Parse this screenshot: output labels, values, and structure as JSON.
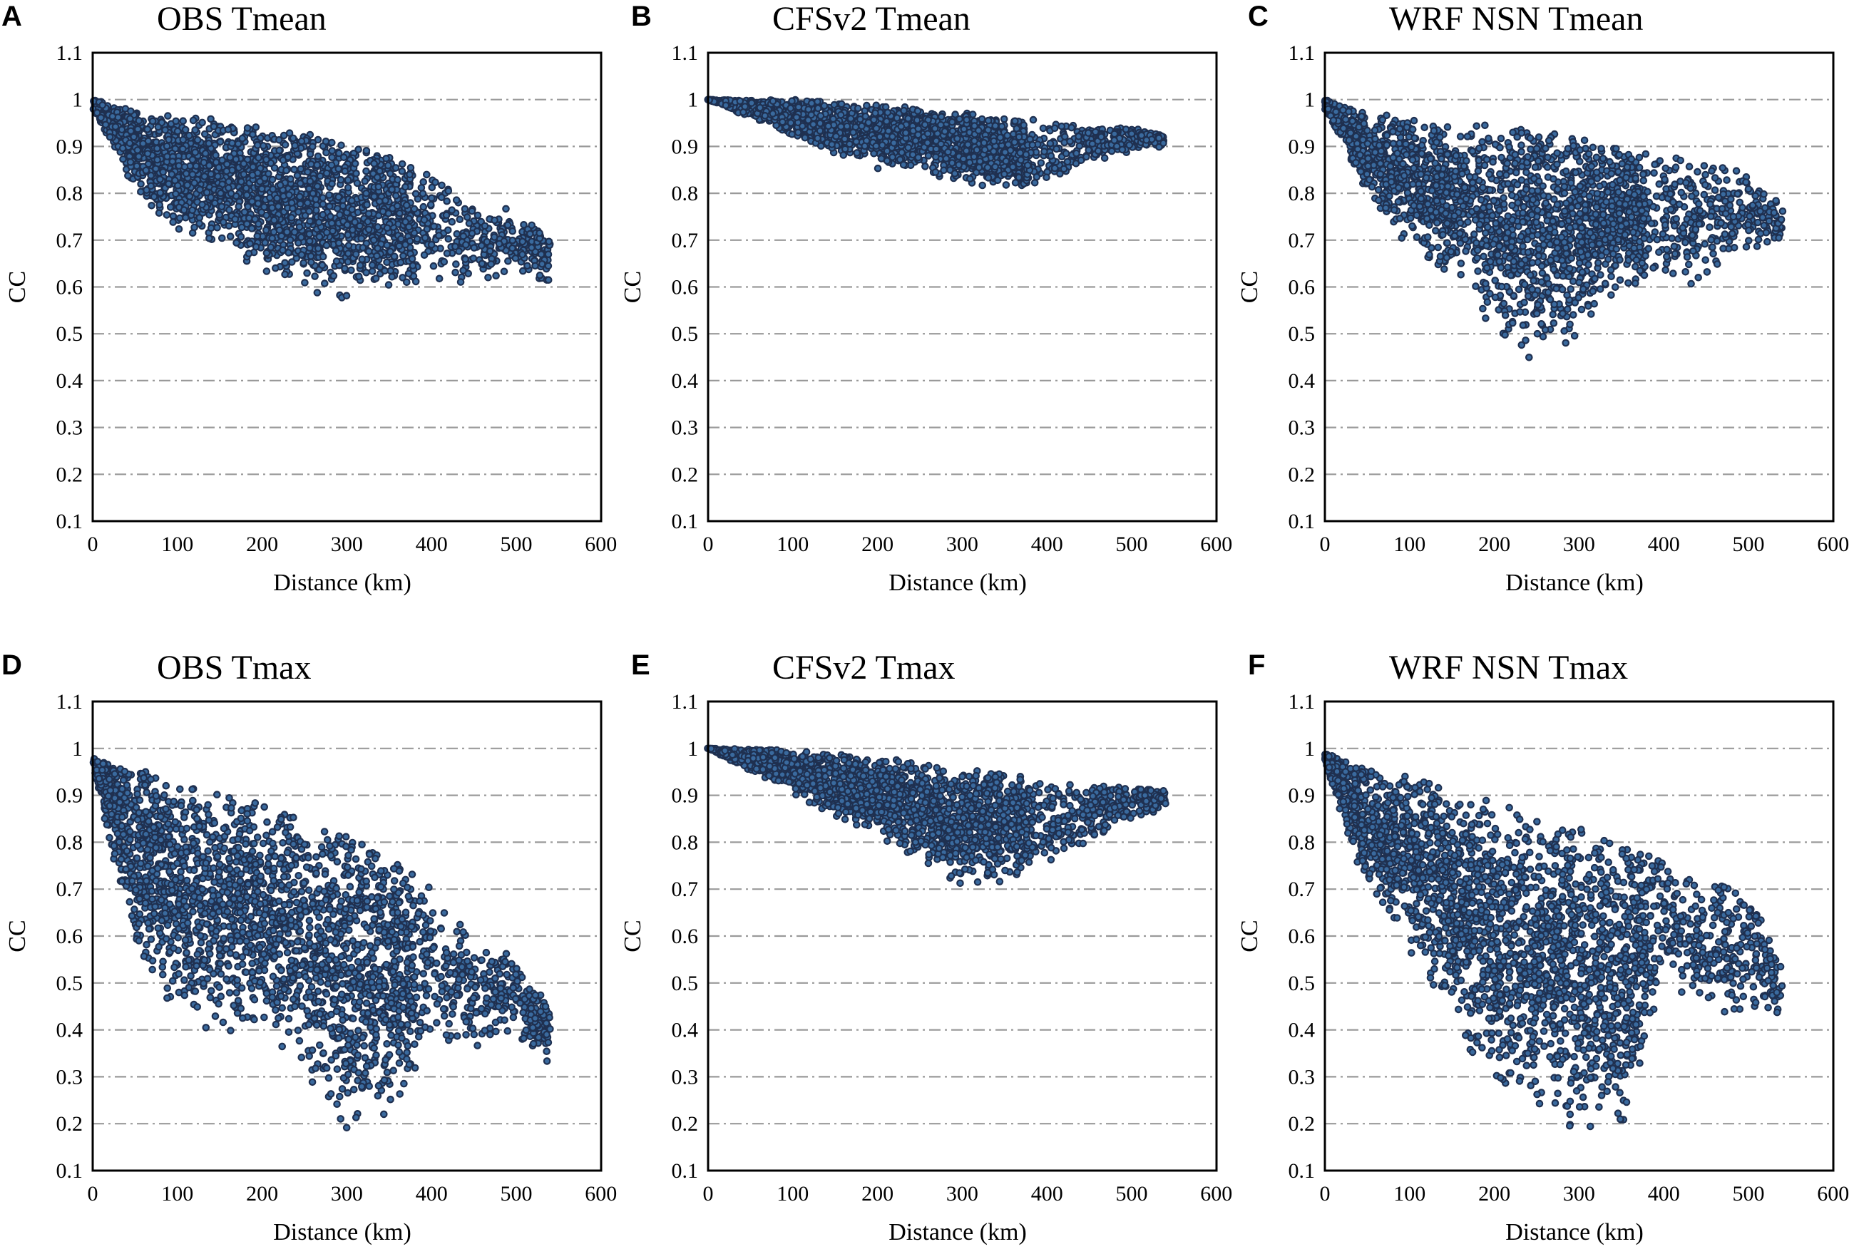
{
  "chart_data": [
    {
      "type": "scatter",
      "panel": "A",
      "title": "OBS Tmean",
      "xlabel": "Distance (km)",
      "ylabel": "CC",
      "xlim": [
        0,
        600
      ],
      "ylim": [
        0.1,
        1.1
      ],
      "xticks": [
        "0",
        "100",
        "200",
        "300",
        "400",
        "500",
        "600"
      ],
      "yticks": [
        "0.1",
        "0.2",
        "0.3",
        "0.4",
        "0.5",
        "0.6",
        "0.7",
        "0.8",
        "0.9",
        "1",
        "1.1"
      ],
      "envelope": [
        [
          0,
          1.0,
          0.98
        ],
        [
          50,
          0.98,
          0.8
        ],
        [
          100,
          0.965,
          0.7
        ],
        [
          150,
          0.96,
          0.68
        ],
        [
          200,
          0.945,
          0.63
        ],
        [
          250,
          0.93,
          0.58
        ],
        [
          300,
          0.91,
          0.57
        ],
        [
          350,
          0.88,
          0.6
        ],
        [
          400,
          0.84,
          0.6
        ],
        [
          450,
          0.78,
          0.6
        ],
        [
          500,
          0.77,
          0.62
        ],
        [
          540,
          0.7,
          0.6
        ]
      ],
      "n_points": 2400,
      "marker_color": "#1f3050",
      "marker_fill": "#3a6a9e",
      "grid": "dash-dot horizontal"
    },
    {
      "type": "scatter",
      "panel": "B",
      "title": "CFSv2 Tmean",
      "xlabel": "Distance (km)",
      "ylabel": "CC",
      "xlim": [
        0,
        600
      ],
      "ylim": [
        0.1,
        1.1
      ],
      "xticks": [
        "0",
        "100",
        "200",
        "300",
        "400",
        "500",
        "600"
      ],
      "yticks": [
        "0.1",
        "0.2",
        "0.3",
        "0.4",
        "0.5",
        "0.6",
        "0.7",
        "0.8",
        "0.9",
        "1",
        "1.1"
      ],
      "envelope": [
        [
          0,
          1.0,
          1.0
        ],
        [
          50,
          1.0,
          0.96
        ],
        [
          100,
          1.0,
          0.92
        ],
        [
          150,
          0.995,
          0.88
        ],
        [
          200,
          0.99,
          0.85
        ],
        [
          250,
          0.985,
          0.84
        ],
        [
          300,
          0.975,
          0.82
        ],
        [
          350,
          0.96,
          0.8
        ],
        [
          400,
          0.96,
          0.81
        ],
        [
          450,
          0.94,
          0.86
        ],
        [
          500,
          0.94,
          0.89
        ],
        [
          540,
          0.93,
          0.9
        ]
      ],
      "n_points": 2200,
      "marker_color": "#1f3050",
      "marker_fill": "#3a6a9e",
      "grid": "dash-dot horizontal"
    },
    {
      "type": "scatter",
      "panel": "C",
      "title": "WRF NSN Tmean",
      "xlabel": "Distance (km)",
      "ylabel": "CC",
      "xlim": [
        0,
        600
      ],
      "ylim": [
        0.1,
        1.1
      ],
      "xticks": [
        "0",
        "100",
        "200",
        "300",
        "400",
        "500",
        "600"
      ],
      "yticks": [
        "0.1",
        "0.2",
        "0.3",
        "0.4",
        "0.5",
        "0.6",
        "0.7",
        "0.8",
        "0.9",
        "1",
        "1.1"
      ],
      "envelope": [
        [
          0,
          1.0,
          0.98
        ],
        [
          50,
          0.975,
          0.78
        ],
        [
          100,
          0.96,
          0.68
        ],
        [
          150,
          0.95,
          0.6
        ],
        [
          200,
          0.95,
          0.5
        ],
        [
          250,
          0.94,
          0.43
        ],
        [
          300,
          0.92,
          0.48
        ],
        [
          350,
          0.9,
          0.6
        ],
        [
          400,
          0.88,
          0.6
        ],
        [
          450,
          0.88,
          0.6
        ],
        [
          500,
          0.85,
          0.66
        ],
        [
          540,
          0.77,
          0.7
        ]
      ],
      "n_points": 2400,
      "marker_color": "#1f3050",
      "marker_fill": "#3a6a9e",
      "grid": "dash-dot horizontal"
    },
    {
      "type": "scatter",
      "panel": "D",
      "title": "OBS Tmax",
      "xlabel": "Distance (km)",
      "ylabel": "CC",
      "xlim": [
        0,
        600
      ],
      "ylim": [
        0.1,
        1.1
      ],
      "xticks": [
        "0",
        "100",
        "200",
        "300",
        "400",
        "500",
        "600"
      ],
      "yticks": [
        "0.1",
        "0.2",
        "0.3",
        "0.4",
        "0.5",
        "0.6",
        "0.7",
        "0.8",
        "0.9",
        "1",
        "1.1"
      ],
      "envelope": [
        [
          0,
          0.98,
          0.96
        ],
        [
          50,
          0.96,
          0.55
        ],
        [
          100,
          0.93,
          0.42
        ],
        [
          150,
          0.91,
          0.39
        ],
        [
          200,
          0.88,
          0.36
        ],
        [
          250,
          0.85,
          0.3
        ],
        [
          300,
          0.82,
          0.16
        ],
        [
          350,
          0.79,
          0.2
        ],
        [
          400,
          0.7,
          0.35
        ],
        [
          450,
          0.6,
          0.36
        ],
        [
          500,
          0.56,
          0.38
        ],
        [
          540,
          0.45,
          0.32
        ]
      ],
      "n_points": 2600,
      "marker_color": "#1f3050",
      "marker_fill": "#3a6a9e",
      "grid": "dash-dot horizontal"
    },
    {
      "type": "scatter",
      "panel": "E",
      "title": "CFSv2 Tmax",
      "xlabel": "Distance (km)",
      "ylabel": "CC",
      "xlim": [
        0,
        600
      ],
      "ylim": [
        0.1,
        1.1
      ],
      "xticks": [
        "0",
        "100",
        "200",
        "300",
        "400",
        "500",
        "600"
      ],
      "yticks": [
        "0.1",
        "0.2",
        "0.3",
        "0.4",
        "0.5",
        "0.6",
        "0.7",
        "0.8",
        "0.9",
        "1",
        "1.1"
      ],
      "envelope": [
        [
          0,
          1.0,
          1.0
        ],
        [
          50,
          1.0,
          0.95
        ],
        [
          100,
          0.995,
          0.9
        ],
        [
          150,
          0.99,
          0.85
        ],
        [
          200,
          0.98,
          0.8
        ],
        [
          250,
          0.97,
          0.75
        ],
        [
          300,
          0.96,
          0.7
        ],
        [
          350,
          0.95,
          0.7
        ],
        [
          400,
          0.93,
          0.75
        ],
        [
          450,
          0.92,
          0.8
        ],
        [
          500,
          0.92,
          0.85
        ],
        [
          540,
          0.91,
          0.87
        ]
      ],
      "n_points": 2200,
      "marker_color": "#1f3050",
      "marker_fill": "#3a6a9e",
      "grid": "dash-dot horizontal"
    },
    {
      "type": "scatter",
      "panel": "F",
      "title": "WRF NSN Tmax",
      "xlabel": "Distance (km)",
      "ylabel": "CC",
      "xlim": [
        0,
        600
      ],
      "ylim": [
        0.1,
        1.1
      ],
      "xticks": [
        "0",
        "100",
        "200",
        "300",
        "400",
        "500",
        "600"
      ],
      "yticks": [
        "0.1",
        "0.2",
        "0.3",
        "0.4",
        "0.5",
        "0.6",
        "0.7",
        "0.8",
        "0.9",
        "1",
        "1.1"
      ],
      "envelope": [
        [
          0,
          0.99,
          0.97
        ],
        [
          50,
          0.96,
          0.68
        ],
        [
          100,
          0.94,
          0.55
        ],
        [
          150,
          0.91,
          0.42
        ],
        [
          200,
          0.89,
          0.25
        ],
        [
          250,
          0.86,
          0.22
        ],
        [
          300,
          0.84,
          0.16
        ],
        [
          350,
          0.8,
          0.17
        ],
        [
          400,
          0.78,
          0.5
        ],
        [
          450,
          0.72,
          0.42
        ],
        [
          500,
          0.7,
          0.42
        ],
        [
          540,
          0.53,
          0.42
        ]
      ],
      "n_points": 2600,
      "marker_color": "#1f3050",
      "marker_fill": "#3a6a9e",
      "grid": "dash-dot horizontal"
    }
  ]
}
